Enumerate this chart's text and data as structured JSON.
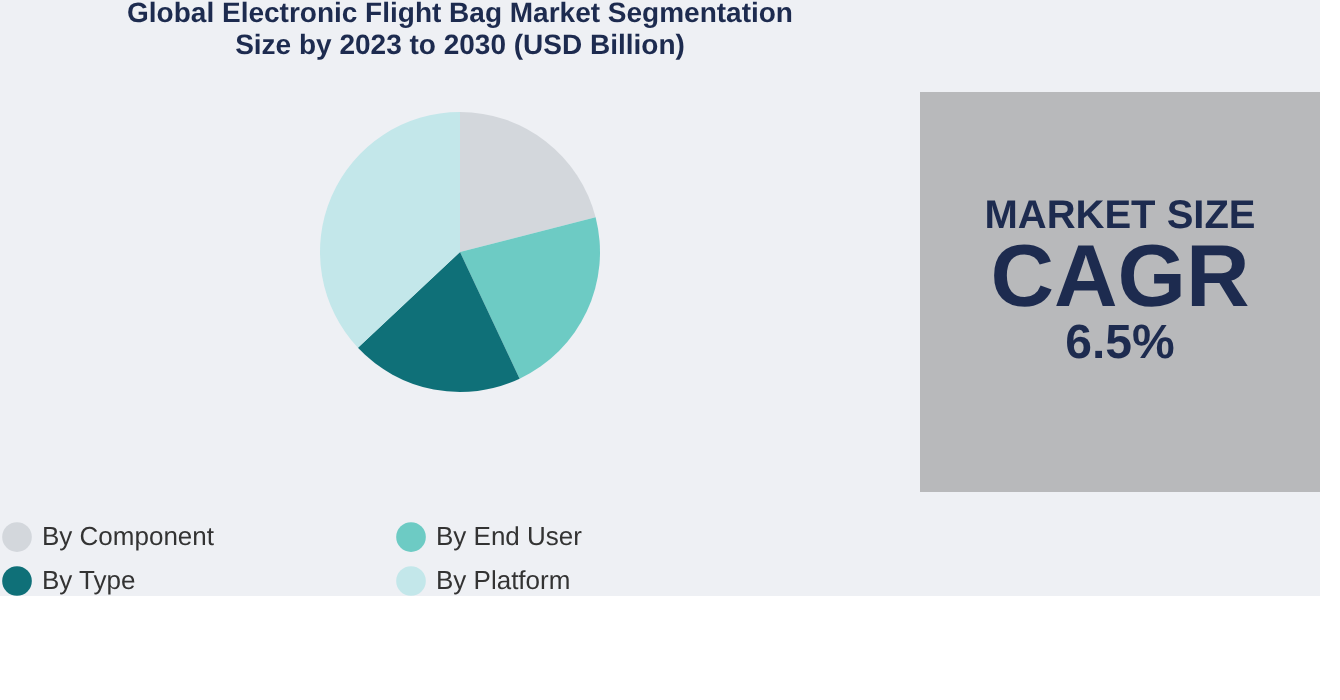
{
  "chart_data": [
    {
      "type": "pie",
      "title": "Global Electronic Flight Bag Market Segmentation Size by 2023 to 2030 (USD Billion)",
      "categories": [
        "By Component",
        "By End User",
        "By Type",
        "By Platform"
      ],
      "values": [
        21,
        22,
        20,
        37
      ],
      "colors": [
        "#d3d7dc",
        "#6dcbc4",
        "#0f7078",
        "#c3e7ea"
      ],
      "legend": "bottom"
    },
    {
      "type": "other",
      "annotations": [
        "MARKET SIZE",
        "CAGR",
        "6.5%"
      ]
    }
  ]
}
